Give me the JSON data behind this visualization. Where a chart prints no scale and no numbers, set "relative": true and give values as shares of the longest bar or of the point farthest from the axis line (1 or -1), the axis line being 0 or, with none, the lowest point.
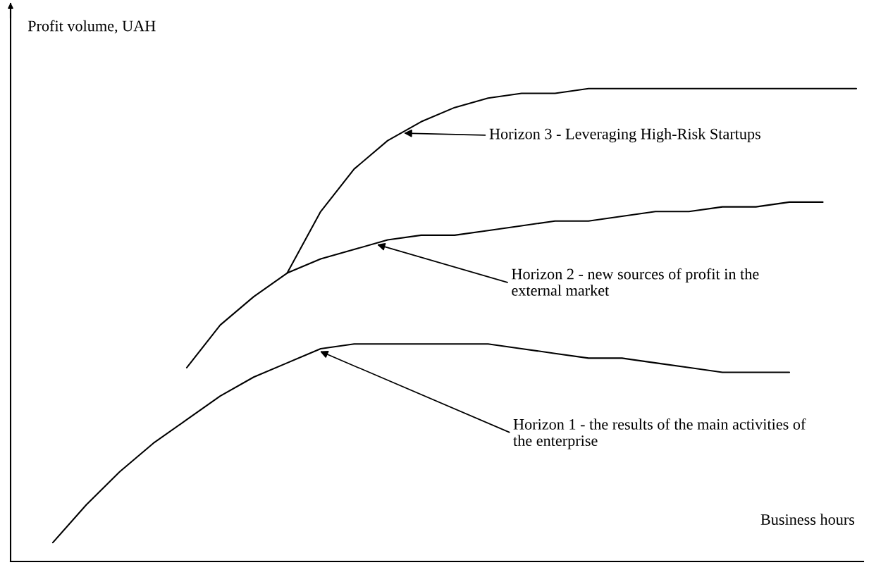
{
  "chart_data": {
    "type": "line",
    "relative": true,
    "xlabel": "Business hours",
    "ylabel": "Profit volume, UAH",
    "marker": "none",
    "line_style": "solid",
    "categories": [
      null,
      null,
      null,
      null,
      null,
      null,
      null,
      null,
      null,
      null,
      null,
      null,
      null,
      null,
      null,
      null,
      null,
      null,
      null,
      null,
      null,
      null,
      null,
      null,
      null
    ],
    "series": [
      {
        "color": "#000000",
        "values": [
          0.04,
          0.12,
          0.19,
          0.25,
          0.3,
          0.35,
          0.39,
          0.42,
          0.45,
          0.46,
          0.46,
          0.46,
          0.46,
          0.46,
          0.45,
          0.44,
          0.43,
          0.43,
          0.42,
          0.41,
          0.4,
          0.4,
          0.4,
          null,
          null
        ]
      },
      {
        "color": "#000000",
        "values": [
          null,
          null,
          null,
          null,
          0.41,
          0.5,
          0.56,
          0.61,
          0.64,
          0.66,
          0.68,
          0.69,
          0.69,
          0.7,
          0.71,
          0.72,
          0.72,
          0.73,
          0.74,
          0.74,
          0.75,
          0.75,
          0.76,
          0.76,
          null
        ]
      },
      {
        "color": "#000000",
        "values": [
          null,
          null,
          null,
          null,
          null,
          null,
          null,
          0.61,
          0.74,
          0.83,
          0.89,
          0.93,
          0.96,
          0.98,
          0.99,
          0.99,
          1.0,
          1.0,
          1.0,
          1.0,
          1.0,
          1.0,
          1.0,
          1.0,
          1.0
        ]
      }
    ],
    "annotations": [
      "Horizon 1 - the results of the main activities of\nthe enterprise",
      "Horizon 2 - new sources of profit in the\nexternal market",
      "Horizon 3 - Leveraging High-Risk Startups"
    ]
  }
}
